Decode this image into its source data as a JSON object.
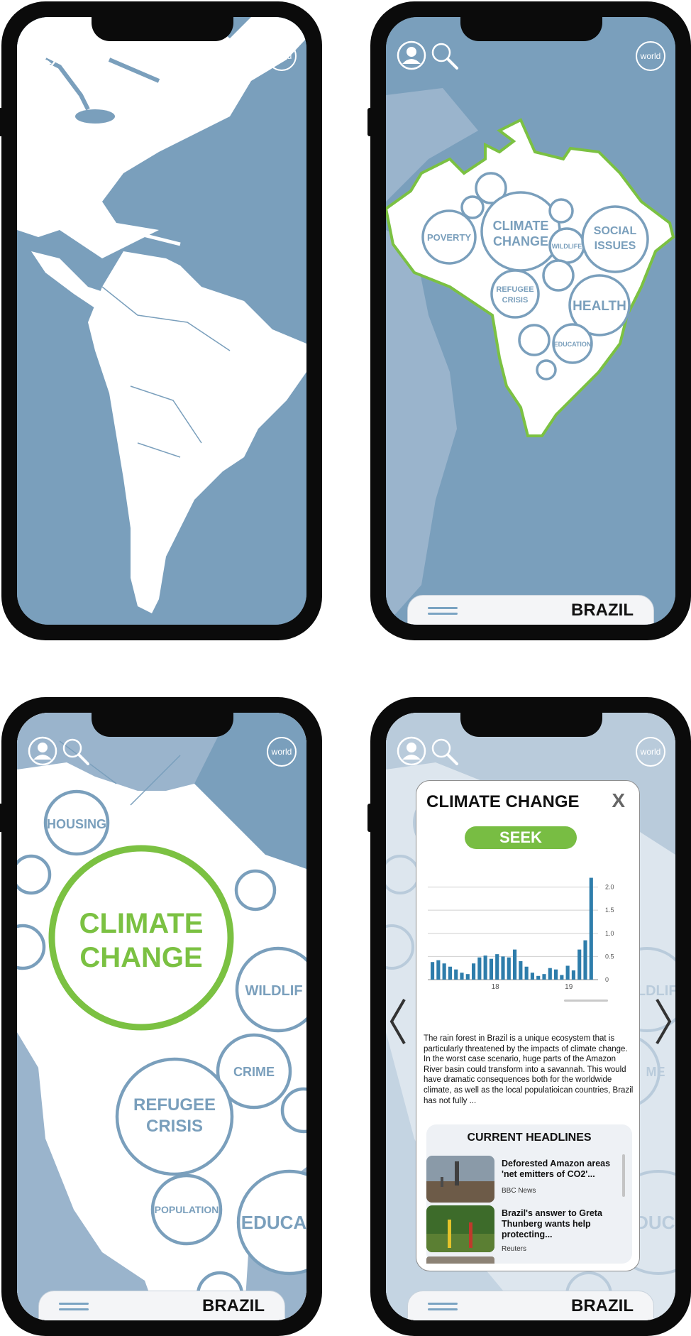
{
  "common": {
    "world_label": "world",
    "country_name": "BRAZIL"
  },
  "brazil_map": {
    "topics": [
      "POVERTY",
      "CLIMATE",
      "CHANGE",
      "WILDLIFE",
      "SOCIAL",
      "ISSUES",
      "REFUGEE",
      "CRISIS",
      "HEALTH",
      "EDUCATION"
    ]
  },
  "zoom_view": {
    "topics": [
      "HOUSING",
      "CLIMATE",
      "CHANGE",
      "WILDLIF",
      "CRIME",
      "REFUGEE",
      "CRISIS",
      "POPULATION",
      "EDUCA"
    ]
  },
  "detail_panel": {
    "title": "CLIMATE CHANGE",
    "close_label": "X",
    "seek_label": "SEEK",
    "description": "The rain forest in Brazil is a unique ecosystem that is particularly threatened by the impacts of climate change. In the worst case scenario, huge parts of the Amazon River basin could transform into a savannah. This would have dramatic consequences both for the worldwide climate, as well as the local populatioican countries, Brazil has not fully ...",
    "headlines_title": "CURRENT HEADLINES",
    "headlines": [
      {
        "headline": "Deforested Amazon areas 'net emitters of CO2'...",
        "source": "BBC News"
      },
      {
        "headline": "Brazil's answer to Greta Thunberg wants help protecting...",
        "source": "Reuters"
      }
    ],
    "background_labels": [
      "WILDLIF",
      "ME",
      "EDUCA"
    ]
  },
  "chart_data": {
    "type": "bar",
    "values": [
      0.38,
      0.42,
      0.35,
      0.28,
      0.22,
      0.15,
      0.12,
      0.35,
      0.48,
      0.52,
      0.45,
      0.55,
      0.5,
      0.48,
      0.65,
      0.4,
      0.28,
      0.15,
      0.08,
      0.12,
      0.25,
      0.22,
      0.1,
      0.3,
      0.2,
      0.65,
      0.85,
      2.2
    ],
    "x_tick_labels": [
      "18",
      "19"
    ],
    "y_tick_labels": [
      "0",
      "0.5",
      "1.0",
      "1.5",
      "2.0"
    ],
    "ylim": [
      0,
      2.3
    ],
    "grid": true,
    "bar_color": "#2e7dab"
  }
}
